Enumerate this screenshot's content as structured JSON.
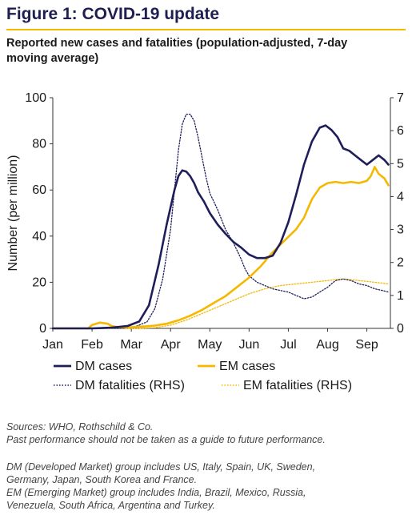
{
  "header": {
    "title": "Figure 1: COVID-19 update",
    "subtitle_line1": "Reported new cases and fatalities (population-adjusted, 7-day",
    "subtitle_line2": "moving average)"
  },
  "footer": {
    "sources": "Sources: WHO, Rothschild & Co.",
    "disclaimer": "Past performance should not be taken as a guide to future performance.",
    "dm_note_1": "DM (Developed Market) group includes US, Italy, Spain, UK, Sweden,",
    "dm_note_2": "Germany, Japan, South Korea and France.",
    "em_note_1": "EM (Emerging Market) group includes India, Brazil, Mexico, Russia,",
    "em_note_2": "Venezuela, South Africa, Argentina and Turkey."
  },
  "colors": {
    "navy": "#1e1e5a",
    "gold": "#f5b800",
    "title": "#1e1e50"
  },
  "chart_data": {
    "type": "line",
    "ylabel": "Number (per million)",
    "ylim": [
      0,
      100
    ],
    "y2lim": [
      0,
      7
    ],
    "xlim": [
      0,
      8.6
    ],
    "x_ticks": [
      {
        "pos": 0,
        "label": "Jan"
      },
      {
        "pos": 1,
        "label": "Feb"
      },
      {
        "pos": 2,
        "label": "Mar"
      },
      {
        "pos": 3,
        "label": "Apr"
      },
      {
        "pos": 4,
        "label": "May"
      },
      {
        "pos": 5,
        "label": "Jun"
      },
      {
        "pos": 6,
        "label": "Jul"
      },
      {
        "pos": 7,
        "label": "Aug"
      },
      {
        "pos": 8,
        "label": "Sep"
      }
    ],
    "y_ticks": [
      "0",
      "20",
      "40",
      "60",
      "80",
      "100"
    ],
    "y2_ticks": [
      "0",
      "1",
      "2",
      "3",
      "4",
      "5",
      "6",
      "7"
    ],
    "legend": [
      "DM cases",
      "EM cases",
      "DM fatalities (RHS)",
      "EM fatalities (RHS)"
    ],
    "series": [
      {
        "name": "DM cases",
        "axis": "left",
        "color": "#1e1e5a",
        "dash": "solid",
        "x": [
          0,
          1,
          1.5,
          1.9,
          2.2,
          2.45,
          2.7,
          2.9,
          3.1,
          3.2,
          3.3,
          3.4,
          3.5,
          3.6,
          3.7,
          3.85,
          4.0,
          4.2,
          4.4,
          4.6,
          4.8,
          5.0,
          5.2,
          5.4,
          5.6,
          5.8,
          6.0,
          6.2,
          6.4,
          6.6,
          6.8,
          6.95,
          7.1,
          7.25,
          7.4,
          7.55,
          7.7,
          7.85,
          8.0,
          8.15,
          8.3,
          8.45,
          8.55
        ],
        "y": [
          0,
          0,
          0.3,
          1,
          3,
          10,
          28,
          45,
          60,
          66,
          68.5,
          68,
          66,
          63,
          59,
          55,
          50,
          45,
          41,
          37.5,
          35,
          32,
          30.5,
          30.5,
          31.5,
          37,
          46,
          58,
          71,
          81,
          87,
          88,
          86,
          83,
          78,
          77,
          75,
          73,
          71,
          73,
          75,
          73,
          71
        ]
      },
      {
        "name": "EM cases",
        "axis": "left",
        "color": "#f5b800",
        "dash": "solid",
        "x": [
          0,
          0.9,
          1.0,
          1.2,
          1.4,
          1.5,
          1.7,
          2.0,
          2.3,
          2.6,
          2.9,
          3.2,
          3.5,
          3.8,
          4.1,
          4.4,
          4.7,
          5.0,
          5.3,
          5.6,
          5.9,
          6.2,
          6.4,
          6.6,
          6.8,
          6.9,
          7.0,
          7.2,
          7.4,
          7.6,
          7.8,
          8.0,
          8.1,
          8.2,
          8.3,
          8.45,
          8.55
        ],
        "y": [
          0,
          0,
          1.5,
          2.5,
          2,
          1,
          0.5,
          0.5,
          0.8,
          1.2,
          2,
          3.5,
          5.5,
          8,
          11,
          14,
          18,
          22,
          27,
          33,
          38,
          43,
          48,
          56,
          61,
          62,
          63,
          63.5,
          63,
          63.5,
          63,
          64,
          66,
          70,
          67,
          65,
          62
        ]
      },
      {
        "name": "DM fatalities (RHS)",
        "axis": "right",
        "color": "#1e1e5a",
        "dash": "dot",
        "x": [
          0,
          1.8,
          2.1,
          2.4,
          2.6,
          2.8,
          3.0,
          3.1,
          3.2,
          3.3,
          3.4,
          3.5,
          3.6,
          3.7,
          3.8,
          3.9,
          4.0,
          4.2,
          4.4,
          4.6,
          4.8,
          4.9,
          5.0,
          5.2,
          5.4,
          5.6,
          5.8,
          6.0,
          6.2,
          6.4,
          6.6,
          6.8,
          7.0,
          7.2,
          7.4,
          7.6,
          7.8,
          8.0,
          8.2,
          8.4,
          8.55
        ],
        "y": [
          0,
          0,
          0.05,
          0.2,
          0.6,
          1.5,
          3.0,
          4.2,
          5.4,
          6.2,
          6.5,
          6.5,
          6.3,
          5.8,
          5.2,
          4.6,
          4.1,
          3.6,
          3.0,
          2.6,
          2.1,
          1.8,
          1.6,
          1.4,
          1.3,
          1.2,
          1.15,
          1.1,
          1.0,
          0.9,
          0.95,
          1.1,
          1.25,
          1.45,
          1.5,
          1.45,
          1.35,
          1.3,
          1.2,
          1.15,
          1.1
        ]
      },
      {
        "name": "EM fatalities (RHS)",
        "axis": "right",
        "color": "#f5b800",
        "dash": "dot",
        "x": [
          0,
          2.2,
          2.6,
          3.0,
          3.4,
          3.8,
          4.2,
          4.6,
          5.0,
          5.4,
          5.8,
          6.2,
          6.6,
          7.0,
          7.4,
          7.8,
          8.2,
          8.55
        ],
        "y": [
          0,
          0,
          0.02,
          0.1,
          0.25,
          0.45,
          0.65,
          0.85,
          1.05,
          1.2,
          1.3,
          1.35,
          1.4,
          1.45,
          1.5,
          1.45,
          1.4,
          1.35
        ]
      }
    ]
  }
}
